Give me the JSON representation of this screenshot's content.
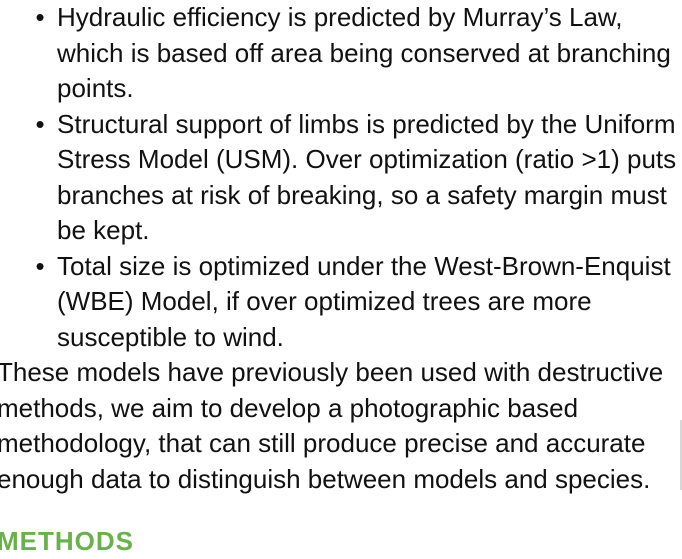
{
  "bullets": [
    {
      "marker": "•",
      "text": "Hydraulic efficiency is predicted by Murray’s Law, which is based off area being conserved at branching points."
    },
    {
      "marker": "•",
      "text": "Structural support of limbs is predicted by the Uniform Stress Model (USM). Over optimization (ratio >1) puts branches at risk of breaking, so a safety margin must be kept."
    },
    {
      "marker": "•",
      "text": "Total size is optimized under the West-Brown-Enquist (WBE) Model, if over optimized trees are more susceptible to wind."
    }
  ],
  "paragraph": "These models have previously been used with destructive methods, we aim to develop a photographic based methodology, that can still produce precise and accurate enough data to distinguish between models and species.",
  "next_heading": "METHODS",
  "colors": {
    "heading": "#6ab04c",
    "text": "#111111"
  }
}
